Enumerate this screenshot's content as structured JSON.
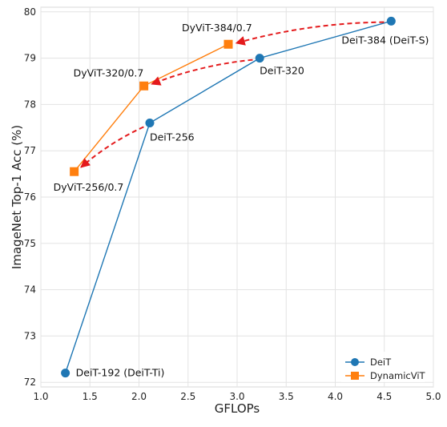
{
  "chart_data": {
    "type": "line",
    "xlabel": "GFLOPs",
    "ylabel": "ImageNet Top-1 Acc (%)",
    "xlim": [
      1.0,
      5.0
    ],
    "ylim": [
      71.9,
      80.1
    ],
    "xticks": [
      "1.0",
      "1.5",
      "2.0",
      "2.5",
      "3.0",
      "3.5",
      "4.0",
      "4.5",
      "5.0"
    ],
    "yticks": [
      "72",
      "73",
      "74",
      "75",
      "76",
      "77",
      "78",
      "79",
      "80"
    ],
    "grid": true,
    "legend_position": "bottom-right",
    "series": [
      {
        "name": "DeiT",
        "color": "#1f77b4",
        "marker": "circle",
        "points": [
          {
            "x": 1.25,
            "y": 72.2,
            "label": "DeiT-192 (DeiT-Ti)"
          },
          {
            "x": 2.11,
            "y": 77.6,
            "label": "DeiT-256"
          },
          {
            "x": 3.23,
            "y": 79.0,
            "label": "DeiT-320"
          },
          {
            "x": 4.57,
            "y": 79.8,
            "label": "DeiT-384 (DeiT-S)"
          }
        ]
      },
      {
        "name": "DynamicViT",
        "color": "#ff7f0e",
        "marker": "square",
        "points": [
          {
            "x": 1.34,
            "y": 76.55,
            "label": "DyViT-256/0.7"
          },
          {
            "x": 2.05,
            "y": 78.4,
            "label": "DyViT-320/0.7"
          },
          {
            "x": 2.91,
            "y": 79.3,
            "label": "DyViT-384/0.7"
          }
        ]
      }
    ],
    "arrows": [
      {
        "from": [
          4.57,
          79.8
        ],
        "to": [
          2.91,
          79.3
        ]
      },
      {
        "from": [
          3.23,
          79.0
        ],
        "to": [
          2.05,
          78.4
        ]
      },
      {
        "from": [
          2.11,
          77.6
        ],
        "to": [
          1.34,
          76.55
        ]
      }
    ],
    "arrow_color": "#e41a1c"
  }
}
